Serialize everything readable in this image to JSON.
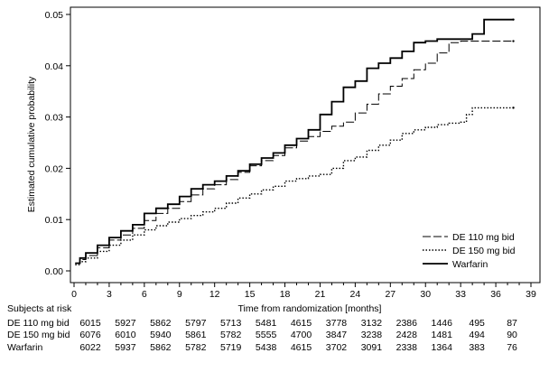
{
  "chart_data": {
    "type": "line",
    "subtype": "kaplan-meier cumulative incidence",
    "title": "",
    "xlabel": "Time from randomization [months]",
    "ylabel": "Estimated cumulative probability",
    "xlim": [
      0,
      39
    ],
    "ylim": [
      0,
      0.05
    ],
    "x_ticks": [
      0,
      3,
      6,
      9,
      12,
      15,
      18,
      21,
      24,
      27,
      30,
      33,
      36,
      39
    ],
    "y_ticks": [
      0.0,
      0.01,
      0.02,
      0.03,
      0.04,
      0.05
    ],
    "y_tick_labels": [
      "0.00",
      "0.01",
      "0.02",
      "0.03",
      "0.04",
      "0.05"
    ],
    "grid": false,
    "legend_position": "bottom-right",
    "series": [
      {
        "name": "DE 110 mg bid",
        "style": "dashed",
        "color": "#000000",
        "points": [
          [
            0.1,
            0.0015
          ],
          [
            0.5,
            0.0022
          ],
          [
            1,
            0.003
          ],
          [
            2,
            0.0045
          ],
          [
            3,
            0.006
          ],
          [
            4,
            0.007
          ],
          [
            5,
            0.0083
          ],
          [
            6,
            0.0098
          ],
          [
            7,
            0.0112
          ],
          [
            8,
            0.0122
          ],
          [
            9,
            0.0135
          ],
          [
            10,
            0.0148
          ],
          [
            11,
            0.016
          ],
          [
            12,
            0.0168
          ],
          [
            13,
            0.0178
          ],
          [
            14,
            0.0192
          ],
          [
            15,
            0.0205
          ],
          [
            16,
            0.0215
          ],
          [
            17,
            0.0225
          ],
          [
            18,
            0.024
          ],
          [
            19,
            0.0253
          ],
          [
            20,
            0.0262
          ],
          [
            21,
            0.0272
          ],
          [
            22,
            0.0282
          ],
          [
            23,
            0.029
          ],
          [
            24,
            0.0308
          ],
          [
            25,
            0.0325
          ],
          [
            26,
            0.0345
          ],
          [
            27,
            0.036
          ],
          [
            28,
            0.0375
          ],
          [
            29,
            0.0392
          ],
          [
            30,
            0.0405
          ],
          [
            31,
            0.0425
          ],
          [
            32,
            0.0445
          ],
          [
            33,
            0.0448
          ],
          [
            34,
            0.0448
          ],
          [
            35,
            0.0448
          ],
          [
            37.5,
            0.0448
          ]
        ]
      },
      {
        "name": "DE 150 mg bid",
        "style": "dotted",
        "color": "#000000",
        "points": [
          [
            0.1,
            0.0012
          ],
          [
            0.5,
            0.0018
          ],
          [
            1,
            0.0025
          ],
          [
            2,
            0.0038
          ],
          [
            3,
            0.005
          ],
          [
            4,
            0.006
          ],
          [
            5,
            0.007
          ],
          [
            6,
            0.008
          ],
          [
            7,
            0.0088
          ],
          [
            8,
            0.0095
          ],
          [
            9,
            0.0102
          ],
          [
            10,
            0.0108
          ],
          [
            11,
            0.0115
          ],
          [
            12,
            0.0122
          ],
          [
            13,
            0.0132
          ],
          [
            14,
            0.0142
          ],
          [
            15,
            0.015
          ],
          [
            16,
            0.0158
          ],
          [
            17,
            0.0165
          ],
          [
            18,
            0.0175
          ],
          [
            19,
            0.018
          ],
          [
            20,
            0.0185
          ],
          [
            21,
            0.0188
          ],
          [
            22,
            0.02
          ],
          [
            23,
            0.0215
          ],
          [
            24,
            0.0222
          ],
          [
            25,
            0.0235
          ],
          [
            26,
            0.0245
          ],
          [
            27,
            0.0255
          ],
          [
            28,
            0.0268
          ],
          [
            29,
            0.0275
          ],
          [
            30,
            0.028
          ],
          [
            31,
            0.0285
          ],
          [
            32,
            0.0288
          ],
          [
            33,
            0.029
          ],
          [
            33.5,
            0.0305
          ],
          [
            34,
            0.0318
          ],
          [
            37.5,
            0.0318
          ]
        ]
      },
      {
        "name": "Warfarin",
        "style": "solid",
        "color": "#000000",
        "points": [
          [
            0.1,
            0.0015
          ],
          [
            0.5,
            0.0025
          ],
          [
            1,
            0.0035
          ],
          [
            2,
            0.005
          ],
          [
            3,
            0.0065
          ],
          [
            4,
            0.0078
          ],
          [
            5,
            0.009
          ],
          [
            6,
            0.0112
          ],
          [
            7,
            0.0122
          ],
          [
            8,
            0.013
          ],
          [
            9,
            0.0145
          ],
          [
            10,
            0.016
          ],
          [
            11,
            0.0168
          ],
          [
            12,
            0.0175
          ],
          [
            13,
            0.0185
          ],
          [
            14,
            0.0195
          ],
          [
            15,
            0.0208
          ],
          [
            16,
            0.022
          ],
          [
            17,
            0.023
          ],
          [
            18,
            0.0245
          ],
          [
            19,
            0.0258
          ],
          [
            20,
            0.0275
          ],
          [
            21,
            0.0305
          ],
          [
            22,
            0.033
          ],
          [
            23,
            0.0358
          ],
          [
            24,
            0.037
          ],
          [
            25,
            0.0395
          ],
          [
            26,
            0.0405
          ],
          [
            27,
            0.0415
          ],
          [
            28,
            0.0428
          ],
          [
            29,
            0.0445
          ],
          [
            30,
            0.0448
          ],
          [
            31,
            0.0452
          ],
          [
            32,
            0.0452
          ],
          [
            33,
            0.0452
          ],
          [
            34,
            0.0462
          ],
          [
            35,
            0.049
          ],
          [
            37.5,
            0.049
          ]
        ]
      }
    ],
    "risk_table": {
      "title": "Subjects at risk",
      "times": [
        0,
        3,
        6,
        9,
        12,
        15,
        18,
        21,
        24,
        27,
        30,
        33,
        36,
        39
      ],
      "rows": [
        {
          "label": "DE 110 mg bid",
          "values": [
            "6015",
            "5927",
            "5862",
            "5797",
            "5713",
            "5481",
            "4615",
            "3778",
            "3132",
            "2386",
            "1446",
            "495",
            "87"
          ]
        },
        {
          "label": "DE 150 mg bid",
          "values": [
            "6076",
            "6010",
            "5940",
            "5861",
            "5782",
            "5555",
            "4700",
            "3847",
            "3238",
            "2428",
            "1481",
            "494",
            "90"
          ]
        },
        {
          "label": "Warfarin",
          "values": [
            "6022",
            "5937",
            "5862",
            "5782",
            "5719",
            "5438",
            "4615",
            "3702",
            "3091",
            "2338",
            "1364",
            "383",
            "76"
          ]
        }
      ]
    }
  }
}
